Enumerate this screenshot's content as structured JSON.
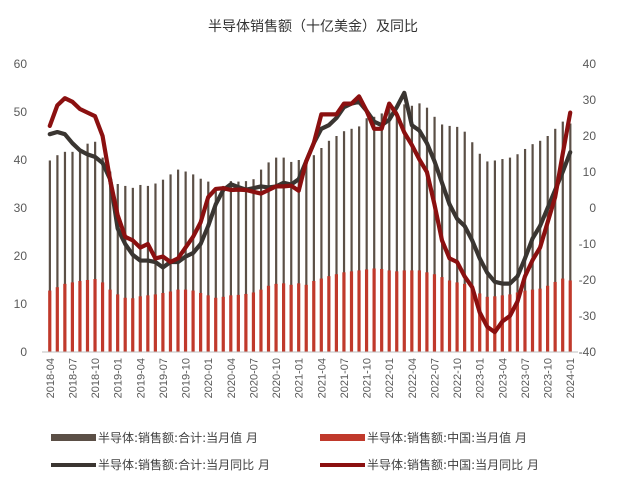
{
  "chart_data": {
    "type": "bar",
    "title": "半导体销售额（十亿美金）及同比",
    "categories": [
      "2018-04",
      "2018-05",
      "2018-06",
      "2018-07",
      "2018-08",
      "2018-09",
      "2018-10",
      "2018-11",
      "2018-12",
      "2019-01",
      "2019-02",
      "2019-03",
      "2019-04",
      "2019-05",
      "2019-06",
      "2019-07",
      "2019-08",
      "2019-09",
      "2019-10",
      "2019-11",
      "2019-12",
      "2020-01",
      "2020-02",
      "2020-03",
      "2020-04",
      "2020-05",
      "2020-06",
      "2020-07",
      "2020-08",
      "2020-09",
      "2020-10",
      "2020-11",
      "2020-12",
      "2021-01",
      "2021-02",
      "2021-03",
      "2021-04",
      "2021-05",
      "2021-06",
      "2021-07",
      "2021-08",
      "2021-09",
      "2021-10",
      "2021-11",
      "2021-12",
      "2022-01",
      "2022-02",
      "2022-03",
      "2022-04",
      "2022-05",
      "2022-06",
      "2022-07",
      "2022-08",
      "2022-09",
      "2022-10",
      "2022-11",
      "2022-12",
      "2023-01",
      "2023-02",
      "2023-03",
      "2023-04",
      "2023-05",
      "2023-06",
      "2023-07",
      "2023-08",
      "2023-09",
      "2023-10",
      "2023-11",
      "2023-12",
      "2024-01"
    ],
    "x_tick_labels": [
      "2018-04",
      "2018-07",
      "2018-10",
      "2019-01",
      "2019-04",
      "2019-07",
      "2019-10",
      "2020-01",
      "2020-04",
      "2020-07",
      "2020-10",
      "2021-01",
      "2021-04",
      "2021-07",
      "2021-10",
      "2022-01",
      "2022-04",
      "2022-07",
      "2022-10",
      "2023-01",
      "2023-04",
      "2023-07",
      "2023-10",
      "2024-01"
    ],
    "y_left": {
      "min": 0,
      "max": 60,
      "ticks": [
        "0",
        "10",
        "20",
        "30",
        "40",
        "50",
        "60"
      ]
    },
    "y_right": {
      "min": -40,
      "max": 40,
      "ticks": [
        "-40",
        "-30",
        "-20",
        "-10",
        "0",
        "10",
        "20",
        "30",
        "40"
      ]
    },
    "grid": false,
    "legend_position": "bottom",
    "series": [
      {
        "name": "半导体:销售额:合计:当月值 月",
        "type": "bar",
        "axis": "left",
        "color": "#5b4f46",
        "values": [
          39.9,
          41.0,
          41.7,
          41.7,
          42.2,
          43.4,
          43.8,
          40.5,
          37.6,
          35.0,
          34.6,
          34.2,
          34.8,
          34.6,
          35.1,
          35.9,
          37.0,
          38.0,
          37.6,
          37.0,
          36.1,
          35.5,
          33.8,
          34.6,
          35.6,
          35.5,
          35.6,
          36.0,
          38.0,
          39.5,
          40.5,
          40.5,
          39.6,
          40.0,
          39.5,
          41.0,
          42.5,
          44.0,
          45.0,
          46.0,
          46.5,
          47.0,
          48.7,
          49.0,
          49.7,
          50.6,
          50.1,
          51.6,
          51.3,
          51.8,
          50.9,
          49.0,
          47.4,
          47.1,
          46.9,
          45.9,
          43.7,
          41.3,
          39.7,
          39.9,
          40.2,
          40.5,
          41.2,
          42.3,
          43.3,
          44.0,
          45.0,
          46.5,
          48.0,
          47.6
        ]
      },
      {
        "name": "半导体:销售额:中国:当月值 月",
        "type": "bar",
        "axis": "left",
        "color": "#c0392b",
        "values": [
          12.8,
          13.5,
          14.2,
          14.5,
          14.8,
          15.0,
          15.2,
          14.5,
          13.0,
          12.0,
          11.3,
          11.2,
          11.6,
          11.8,
          12.0,
          12.3,
          12.6,
          13.0,
          13.0,
          12.8,
          12.3,
          11.8,
          11.3,
          11.5,
          11.8,
          11.9,
          12.1,
          12.4,
          13.0,
          13.8,
          14.2,
          14.3,
          14.0,
          14.3,
          14.0,
          14.8,
          15.3,
          15.8,
          16.2,
          16.6,
          16.8,
          17.0,
          17.2,
          17.4,
          17.3,
          17.0,
          16.8,
          17.0,
          17.0,
          17.0,
          16.6,
          16.2,
          15.6,
          14.9,
          14.5,
          14.2,
          13.4,
          12.2,
          11.5,
          11.6,
          11.8,
          12.0,
          12.4,
          12.8,
          13.0,
          13.2,
          13.8,
          14.6,
          15.3,
          14.9
        ]
      },
      {
        "name": "半导体:销售额:合计:当月同比 月",
        "type": "line",
        "axis": "right",
        "color": "#3a3531",
        "values": [
          20.5,
          21.1,
          20.5,
          18.0,
          16.0,
          14.9,
          14.2,
          12.5,
          8.0,
          -5.7,
          -10.0,
          -13.0,
          -14.6,
          -14.6,
          -15.0,
          -16.5,
          -15.0,
          -15.0,
          -13.5,
          -12.5,
          -10.0,
          -5.0,
          1.0,
          5.0,
          6.6,
          5.8,
          5.1,
          5.5,
          6.0,
          5.7,
          6.0,
          7.0,
          6.5,
          8.0,
          13.0,
          18.0,
          22.0,
          23.0,
          25.0,
          28.0,
          29.0,
          29.5,
          27.0,
          24.0,
          23.0,
          24.5,
          28.0,
          32.0,
          23.0,
          21.5,
          18.0,
          13.0,
          7.0,
          1.0,
          -3.0,
          -5.0,
          -9.0,
          -14.0,
          -18.0,
          -20.5,
          -21.0,
          -21.0,
          -19.0,
          -14.0,
          -8.5,
          -5.0,
          0.0,
          5.0,
          10.0,
          15.5
        ]
      },
      {
        "name": "半导体:销售额:中国:当月同比 月",
        "type": "line",
        "axis": "right",
        "color": "#8b1010",
        "values": [
          22.8,
          28.5,
          30.5,
          29.5,
          27.5,
          26.5,
          25.5,
          20.0,
          7.8,
          -2.0,
          -8.0,
          -9.0,
          -11.0,
          -10.0,
          -14.0,
          -13.5,
          -15.0,
          -14.0,
          -11.0,
          -8.0,
          -4.0,
          3.0,
          5.3,
          5.5,
          5.0,
          5.1,
          5.0,
          4.5,
          4.0,
          5.0,
          6.0,
          6.0,
          6.2,
          4.8,
          13.0,
          18.0,
          26.0,
          26.0,
          26.0,
          29.0,
          29.0,
          31.0,
          27.0,
          22.0,
          22.0,
          29.0,
          26.0,
          21.0,
          17.5,
          13.5,
          10.0,
          1.0,
          -9.0,
          -14.0,
          -15.0,
          -19.0,
          -22.0,
          -29.0,
          -33.0,
          -34.5,
          -31.5,
          -30.0,
          -26.0,
          -19.0,
          -14.5,
          -11.0,
          -4.0,
          3.0,
          15.0,
          26.5
        ]
      }
    ]
  }
}
